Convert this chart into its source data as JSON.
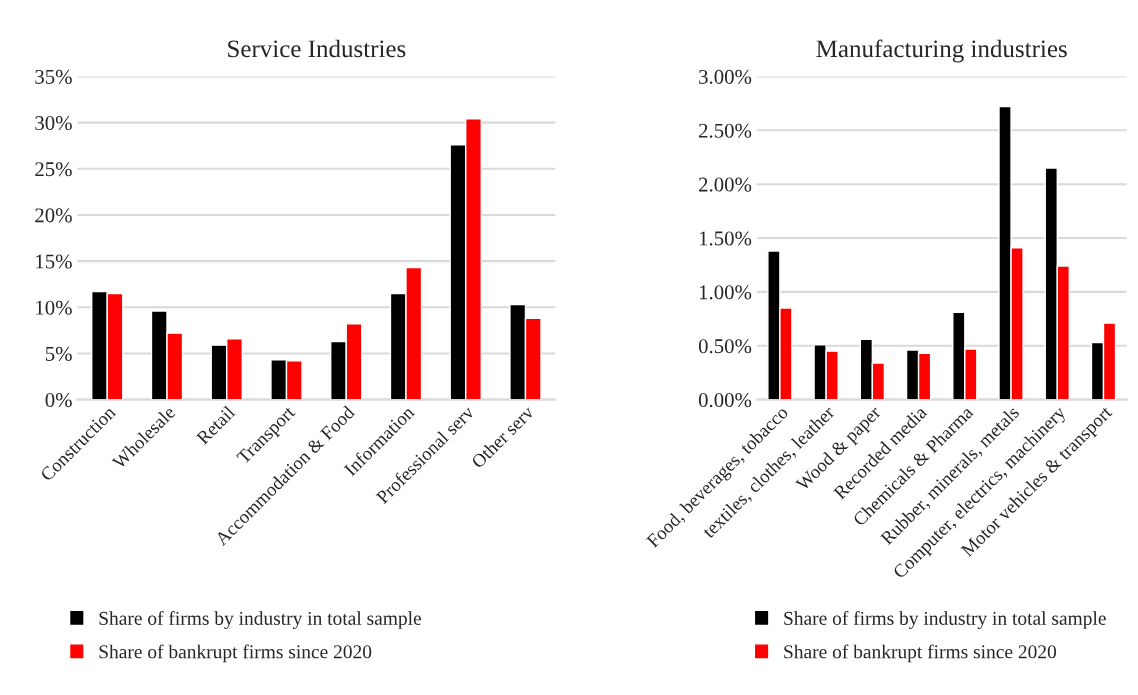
{
  "chart_data": [
    {
      "type": "bar",
      "title": "Service Industries",
      "categories": [
        "Construction",
        "Wholesale",
        "Retail",
        "Transport",
        "Accommodation & Food",
        "Information",
        "Professional serv",
        "Other serv"
      ],
      "series": [
        {
          "name": "Share of firms by industry in total sample",
          "color": "#000000",
          "values": [
            11.7,
            9.6,
            5.9,
            4.3,
            6.3,
            11.5,
            27.6,
            10.3
          ]
        },
        {
          "name": "Share of bankrupt firms since 2020",
          "color": "#ff0000",
          "values": [
            11.5,
            7.2,
            6.6,
            4.2,
            8.2,
            14.3,
            30.4,
            8.8
          ]
        }
      ],
      "ylim": [
        0,
        35
      ],
      "yticks": [
        {
          "value": 0,
          "label": "0%"
        },
        {
          "value": 5,
          "label": "5%"
        },
        {
          "value": 10,
          "label": "10%"
        },
        {
          "value": 15,
          "label": "15%"
        },
        {
          "value": 20,
          "label": "20%"
        },
        {
          "value": 25,
          "label": "25%"
        },
        {
          "value": 30,
          "label": "30%"
        },
        {
          "value": 35,
          "label": "35%"
        }
      ],
      "grid": "y",
      "legend": "bottom"
    },
    {
      "type": "bar",
      "title": "Manufacturing industries",
      "categories": [
        "Food, beverages, tobacco",
        "textiles, clothes, leather",
        "Wood & paper",
        "Recorded media",
        "Chemicals & Pharma",
        "Rubber, minerals, metals",
        "Computer, electrics, machinery",
        "Motor vehicles & transport"
      ],
      "series": [
        {
          "name": "Share of firms by industry in total sample",
          "color": "#000000",
          "values": [
            1.38,
            0.51,
            0.56,
            0.46,
            0.81,
            2.72,
            2.15,
            0.53
          ]
        },
        {
          "name": "Share of bankrupt firms since 2020",
          "color": "#ff0000",
          "values": [
            0.85,
            0.45,
            0.34,
            0.43,
            0.47,
            1.41,
            1.24,
            0.71
          ]
        }
      ],
      "ylim": [
        0,
        3
      ],
      "yticks": [
        {
          "value": 0,
          "label": "0.00%"
        },
        {
          "value": 0.5,
          "label": "0.50%"
        },
        {
          "value": 1,
          "label": "1.00%"
        },
        {
          "value": 1.5,
          "label": "1.50%"
        },
        {
          "value": 2,
          "label": "2.00%"
        },
        {
          "value": 2.5,
          "label": "2.50%"
        },
        {
          "value": 3,
          "label": "3.00%"
        }
      ],
      "grid": "y",
      "legend": "bottom"
    }
  ]
}
